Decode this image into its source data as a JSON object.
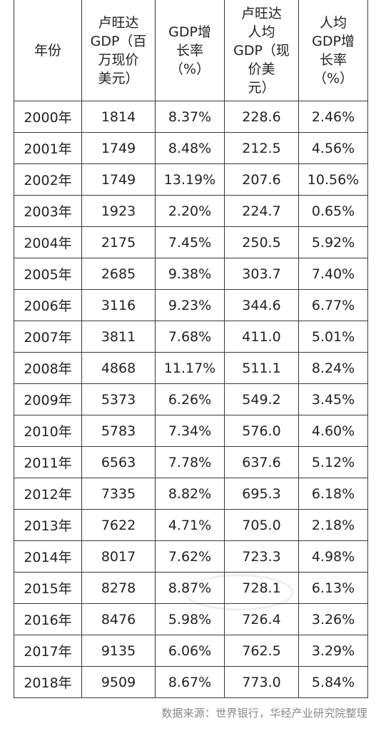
{
  "table": {
    "headers": [
      "年份",
      "卢旺达\nGDP（百\n万现价\n美元）",
      "GDP增\n长率\n（%）",
      "卢旺达\n人均\nGDP（现\n价美\n元）",
      "人均\nGDP增\n长率\n（%）"
    ],
    "rows": [
      [
        "2000年",
        "1814",
        "8.37%",
        "228.6",
        "2.46%"
      ],
      [
        "2001年",
        "1749",
        "8.48%",
        "212.5",
        "4.56%"
      ],
      [
        "2002年",
        "1749",
        "13.19%",
        "207.6",
        "10.56%"
      ],
      [
        "2003年",
        "1923",
        "2.20%",
        "224.7",
        "0.65%"
      ],
      [
        "2004年",
        "2175",
        "7.45%",
        "250.5",
        "5.92%"
      ],
      [
        "2005年",
        "2685",
        "9.38%",
        "303.7",
        "7.40%"
      ],
      [
        "2006年",
        "3116",
        "9.23%",
        "344.6",
        "6.77%"
      ],
      [
        "2007年",
        "3811",
        "7.68%",
        "411.0",
        "5.01%"
      ],
      [
        "2008年",
        "4868",
        "11.17%",
        "511.1",
        "8.24%"
      ],
      [
        "2009年",
        "5373",
        "6.26%",
        "549.2",
        "3.45%"
      ],
      [
        "2010年",
        "5783",
        "7.34%",
        "576.0",
        "4.60%"
      ],
      [
        "2011年",
        "6563",
        "7.78%",
        "637.6",
        "5.12%"
      ],
      [
        "2012年",
        "7335",
        "8.82%",
        "695.3",
        "6.18%"
      ],
      [
        "2013年",
        "7622",
        "4.71%",
        "705.0",
        "2.18%"
      ],
      [
        "2014年",
        "8017",
        "7.62%",
        "723.3",
        "4.98%"
      ],
      [
        "2015年",
        "8278",
        "8.87%",
        "728.1",
        "6.13%"
      ],
      [
        "2016年",
        "8476",
        "5.98%",
        "726.4",
        "3.26%"
      ],
      [
        "2017年",
        "9135",
        "6.06%",
        "762.5",
        "3.29%"
      ],
      [
        "2018年",
        "9509",
        "8.67%",
        "773.0",
        "5.84%"
      ]
    ]
  },
  "source_note": "数据来源：世界银行，华经产业研究院整理"
}
